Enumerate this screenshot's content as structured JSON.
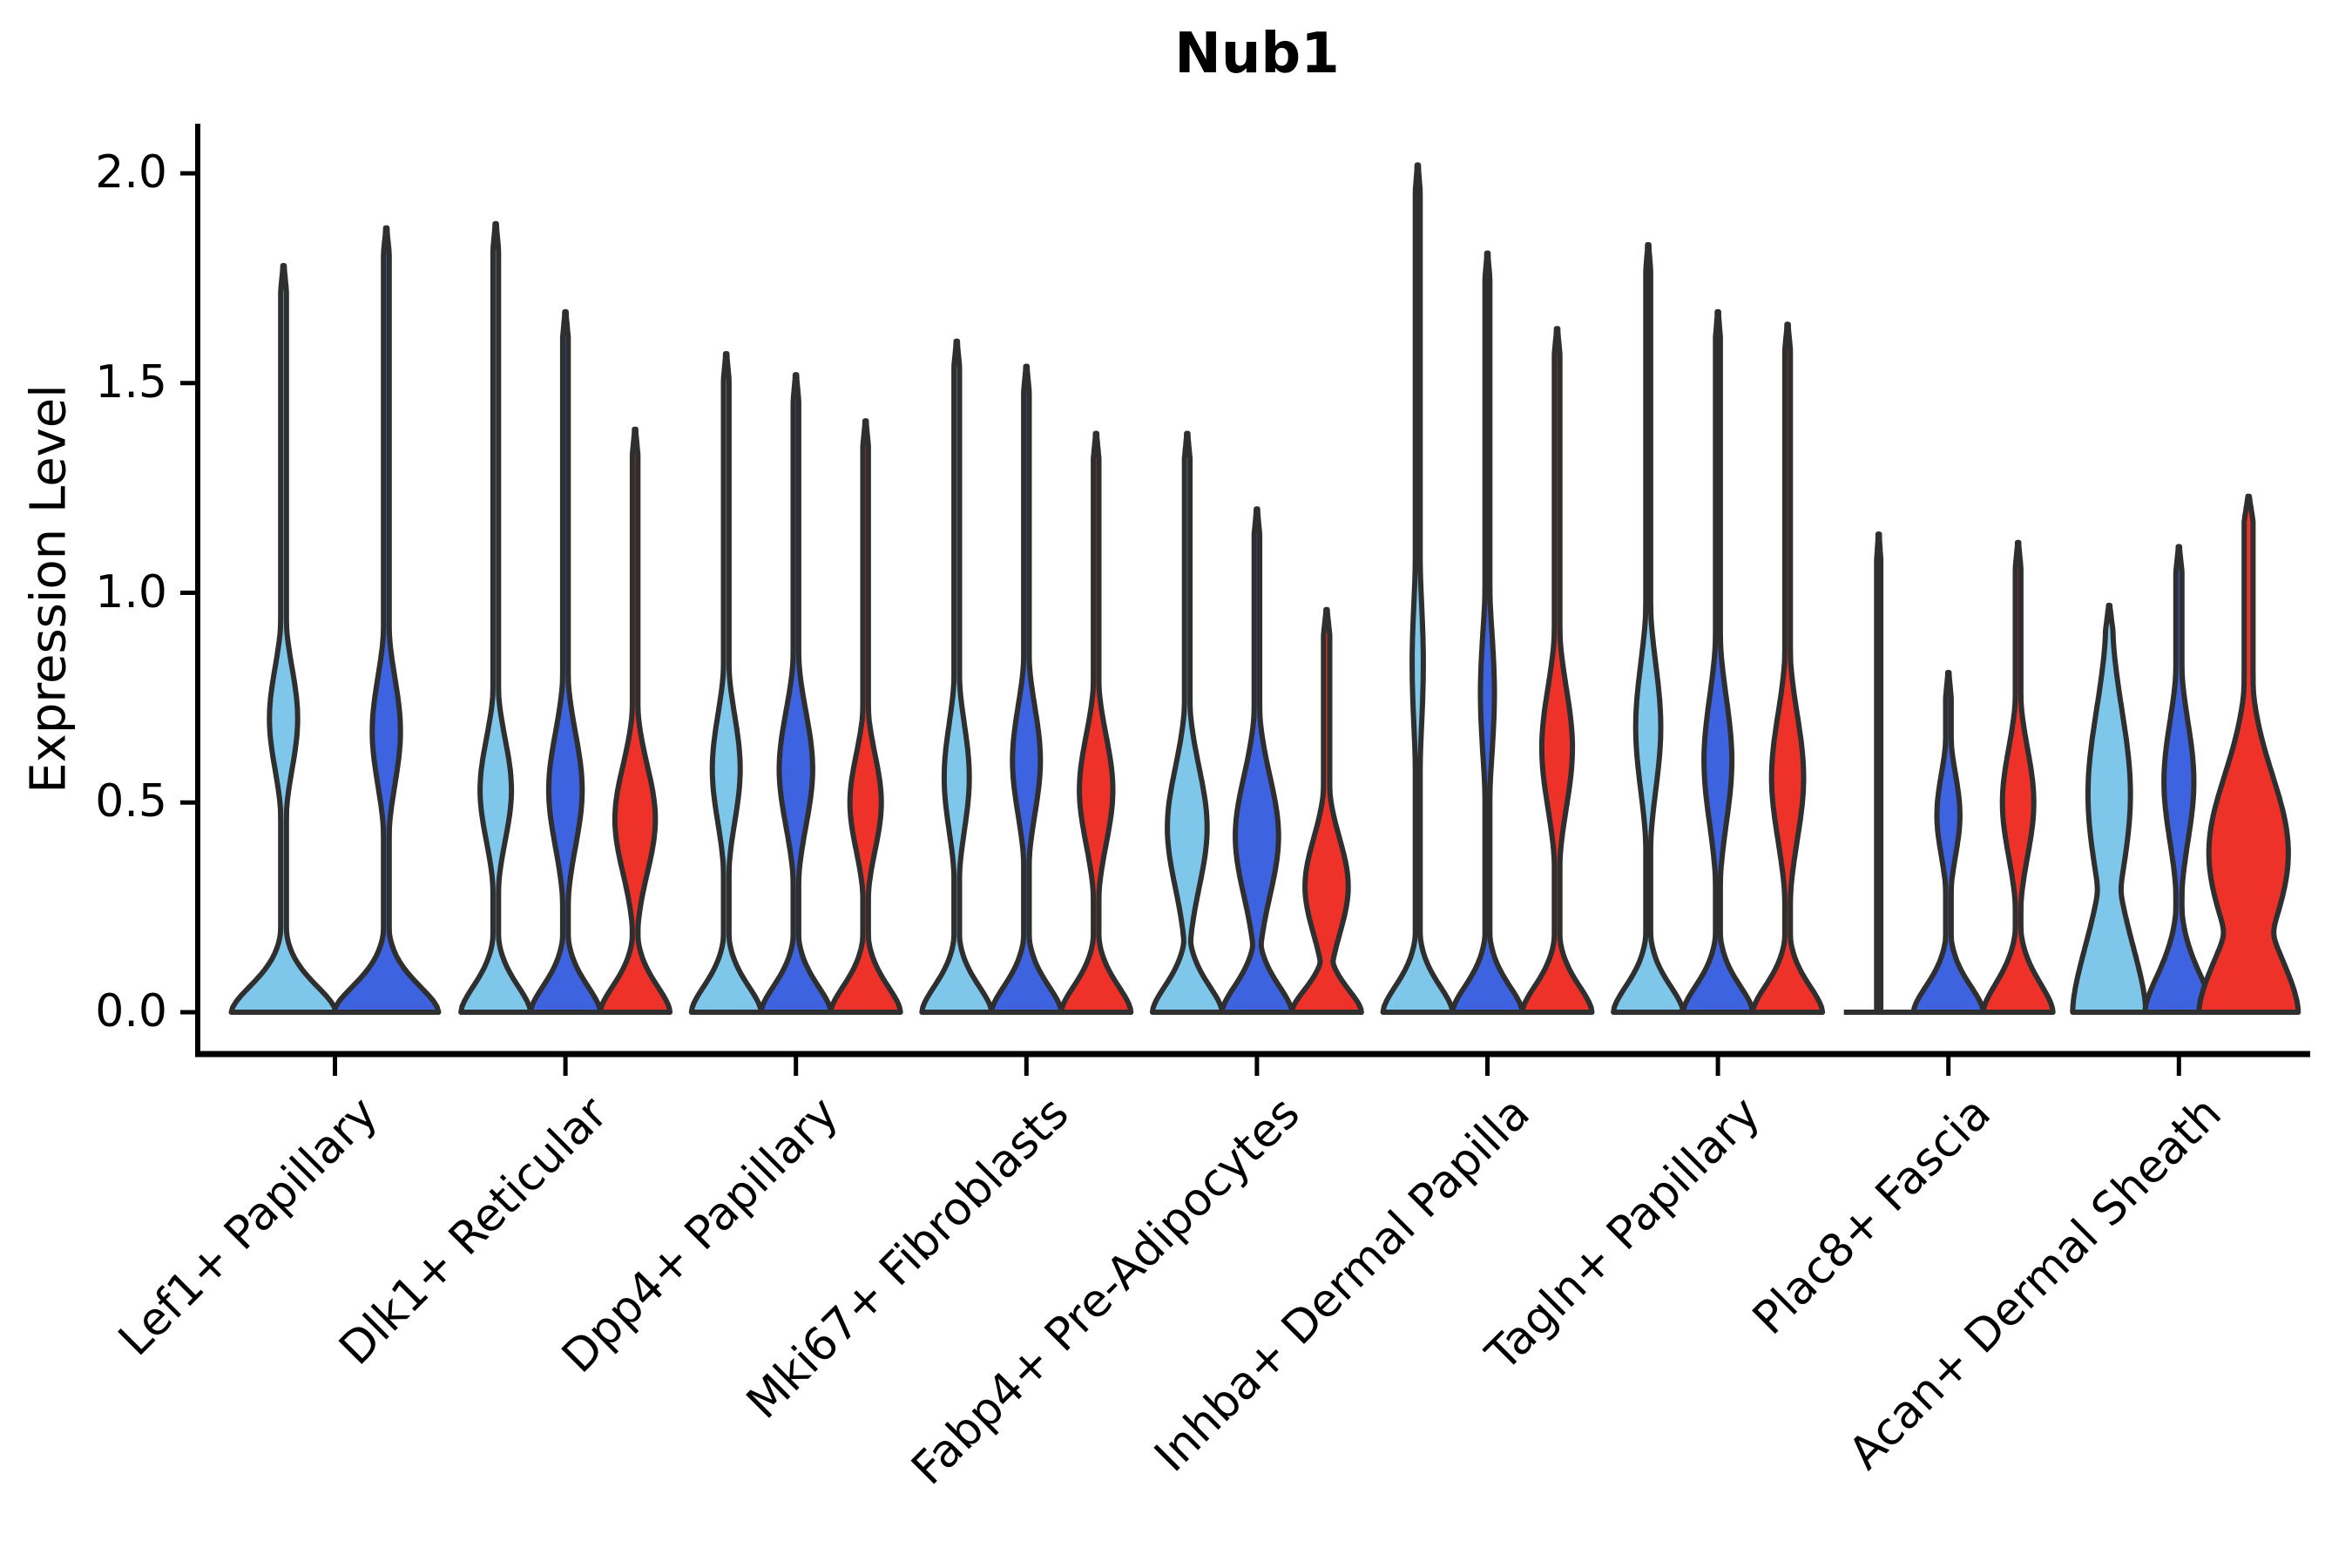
{
  "chart_data": {
    "type": "violin",
    "title": "Nub1",
    "ylabel": "Expression Level",
    "xlabel": "",
    "ylim": [
      0.0,
      2.1
    ],
    "yticks": [
      0.0,
      0.5,
      1.0,
      1.5,
      2.0
    ],
    "ytick_labels": [
      "0.0",
      "0.5",
      "1.0",
      "1.5",
      "2.0"
    ],
    "grid": false,
    "legend": "none",
    "categories": [
      "Lef1+ Papillary",
      "Dlk1+ Reticular",
      "Dpp4+ Papillary",
      "Mki67+ Fibroblasts",
      "Fabp4+ Pre-Adipocytes",
      "Inhba+ Dermal Papilla",
      "Tagln+ Papillary",
      "Plac8+ Fascia",
      "Acan+ Dermal Sheath"
    ],
    "series": [
      {
        "id": "light-blue-condition",
        "color": "#7EC7EB"
      },
      {
        "id": "royal-blue-condition",
        "color": "#3E63E0"
      },
      {
        "id": "red-condition",
        "color": "#EF3229"
      }
    ],
    "outline_color": "#2F2F2F",
    "axis_color": "#000000",
    "violins": [
      {
        "group": 0,
        "series": 0,
        "offset": -59,
        "width": 60,
        "max": 1.78,
        "base_sig": 0.1,
        "bulge": [
          0.27,
          0.7,
          0.17
        ],
        "stem": 0.055
      },
      {
        "group": 0,
        "series": 1,
        "offset": 59,
        "width": 60,
        "max": 1.87,
        "base_sig": 0.1,
        "bulge": [
          0.27,
          0.67,
          0.18
        ],
        "stem": 0.055
      },
      {
        "group": 1,
        "series": 0,
        "offset": -80,
        "width": 40,
        "max": 1.88,
        "base_sig": 0.1,
        "bulge": [
          0.45,
          0.53,
          0.17
        ],
        "stem": 0.08
      },
      {
        "group": 1,
        "series": 1,
        "offset": 0,
        "width": 40,
        "max": 1.67,
        "base_sig": 0.1,
        "bulge": [
          0.48,
          0.53,
          0.19
        ],
        "stem": 0.08
      },
      {
        "group": 1,
        "series": 2,
        "offset": 80,
        "width": 40,
        "max": 1.39,
        "base_sig": 0.1,
        "bulge": [
          0.58,
          0.46,
          0.18
        ],
        "stem": 0.08
      },
      {
        "group": 2,
        "series": 0,
        "offset": -80,
        "width": 40,
        "max": 1.57,
        "base_sig": 0.1,
        "bulge": [
          0.4,
          0.58,
          0.18
        ],
        "stem": 0.08
      },
      {
        "group": 2,
        "series": 1,
        "offset": 0,
        "width": 40,
        "max": 1.52,
        "base_sig": 0.1,
        "bulge": [
          0.48,
          0.58,
          0.19
        ],
        "stem": 0.08
      },
      {
        "group": 2,
        "series": 2,
        "offset": 80,
        "width": 40,
        "max": 1.41,
        "base_sig": 0.1,
        "bulge": [
          0.45,
          0.5,
          0.16
        ],
        "stem": 0.08
      },
      {
        "group": 3,
        "series": 0,
        "offset": -80,
        "width": 40,
        "max": 1.6,
        "base_sig": 0.1,
        "bulge": [
          0.36,
          0.56,
          0.18
        ],
        "stem": 0.08
      },
      {
        "group": 3,
        "series": 1,
        "offset": 0,
        "width": 40,
        "max": 1.54,
        "base_sig": 0.1,
        "bulge": [
          0.4,
          0.6,
          0.18
        ],
        "stem": 0.08
      },
      {
        "group": 3,
        "series": 2,
        "offset": 80,
        "width": 40,
        "max": 1.38,
        "base_sig": 0.1,
        "bulge": [
          0.48,
          0.53,
          0.18
        ],
        "stem": 0.08
      },
      {
        "group": 4,
        "series": 0,
        "offset": -80,
        "width": 40,
        "max": 1.38,
        "base_sig": 0.1,
        "bulge": [
          0.57,
          0.44,
          0.2
        ],
        "stem": 0.08
      },
      {
        "group": 4,
        "series": 1,
        "offset": 0,
        "width": 40,
        "max": 1.2,
        "base_sig": 0.1,
        "bulge": [
          0.62,
          0.42,
          0.2
        ],
        "stem": 0.08
      },
      {
        "group": 4,
        "series": 2,
        "offset": 80,
        "width": 40,
        "max": 0.96,
        "base_sig": 0.085,
        "bulge": [
          0.62,
          0.3,
          0.16
        ],
        "stem": 0.09
      },
      {
        "group": 5,
        "series": 0,
        "offset": -80,
        "width": 40,
        "max": 2.02,
        "base_sig": 0.1,
        "bulge": [
          0.16,
          0.83,
          0.24
        ],
        "stem": 0.07
      },
      {
        "group": 5,
        "series": 1,
        "offset": 0,
        "width": 40,
        "max": 1.81,
        "base_sig": 0.1,
        "bulge": [
          0.2,
          0.76,
          0.22
        ],
        "stem": 0.07
      },
      {
        "group": 5,
        "series": 2,
        "offset": 80,
        "width": 40,
        "max": 1.63,
        "base_sig": 0.1,
        "bulge": [
          0.44,
          0.63,
          0.2
        ],
        "stem": 0.08
      },
      {
        "group": 6,
        "series": 0,
        "offset": -80,
        "width": 40,
        "max": 1.83,
        "base_sig": 0.1,
        "bulge": [
          0.36,
          0.68,
          0.21
        ],
        "stem": 0.07
      },
      {
        "group": 6,
        "series": 1,
        "offset": 0,
        "width": 40,
        "max": 1.67,
        "base_sig": 0.1,
        "bulge": [
          0.4,
          0.6,
          0.21
        ],
        "stem": 0.07
      },
      {
        "group": 6,
        "series": 2,
        "offset": 80,
        "width": 40,
        "max": 1.64,
        "base_sig": 0.1,
        "bulge": [
          0.46,
          0.56,
          0.21
        ],
        "stem": 0.08
      },
      {
        "group": 7,
        "series": 0,
        "offset": -80,
        "width": 2.4,
        "max": 1.14,
        "base_sig": 0,
        "bulge": null,
        "stem": 1.0,
        "flat_base": 40
      },
      {
        "group": 7,
        "series": 1,
        "offset": 0,
        "width": 40,
        "max": 0.81,
        "base_sig": 0.1,
        "bulge": [
          0.33,
          0.47,
          0.14
        ],
        "stem": 0.08
      },
      {
        "group": 7,
        "series": 2,
        "offset": 80,
        "width": 40,
        "max": 1.12,
        "base_sig": 0.11,
        "bulge": [
          0.45,
          0.5,
          0.18
        ],
        "stem": 0.08
      },
      {
        "group": 8,
        "series": 0,
        "offset": -80,
        "width": 42,
        "max": 0.97,
        "base_sig": 0.26,
        "bulge": [
          0.58,
          0.52,
          0.28
        ],
        "stem": 0.1
      },
      {
        "group": 8,
        "series": 1,
        "offset": 0,
        "width": 39,
        "max": 1.11,
        "base_sig": 0.14,
        "bulge": [
          0.44,
          0.55,
          0.2
        ],
        "stem": 0.09
      },
      {
        "group": 8,
        "series": 2,
        "offset": 80,
        "width": 57,
        "max": 1.23,
        "base_sig": 0.22,
        "bulge": [
          0.8,
          0.38,
          0.26
        ],
        "stem": 0.09
      }
    ]
  }
}
